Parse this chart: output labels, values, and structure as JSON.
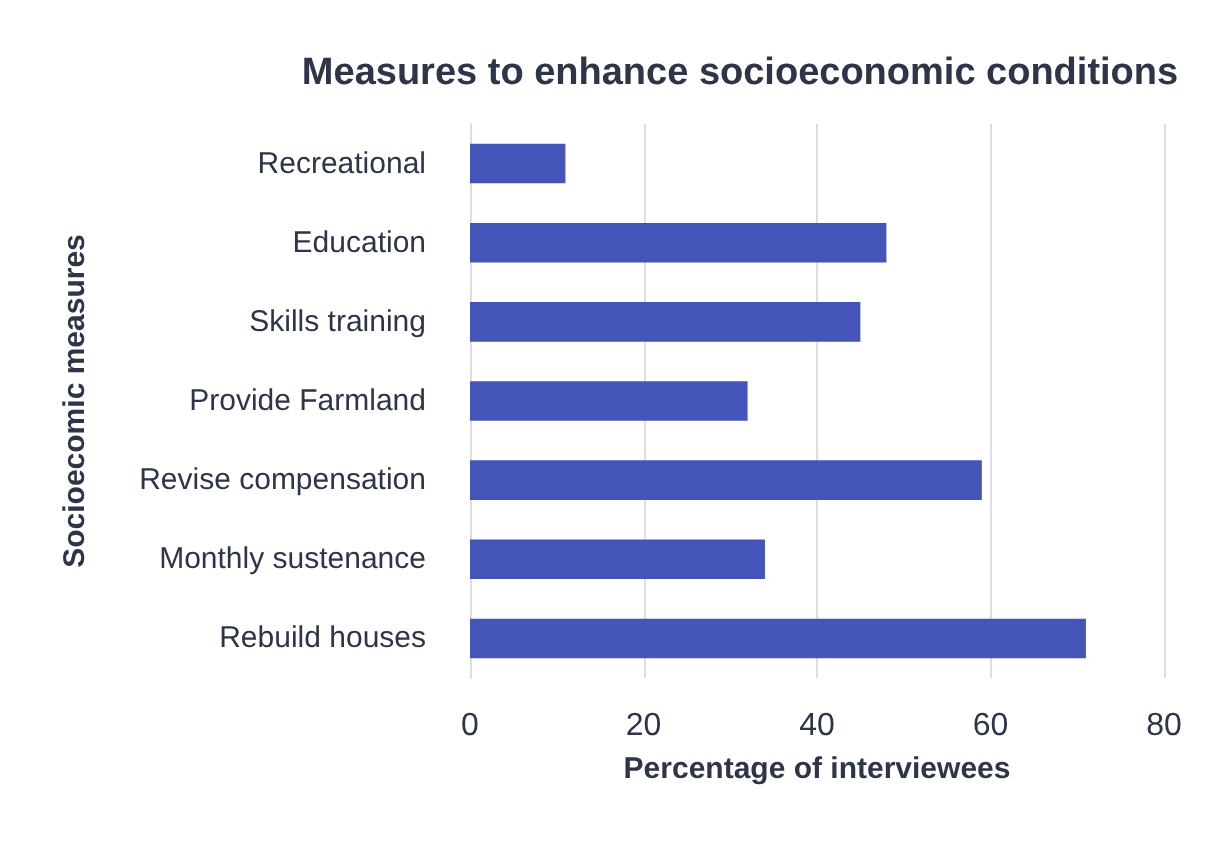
{
  "chart_data": {
    "type": "bar",
    "orientation": "horizontal",
    "title": "Measures to enhance socioeconomic conditions",
    "xlabel": "Percentage of interviewees",
    "ylabel": "Socioecomic measures",
    "categories": [
      "Recreational",
      "Education",
      "Skills training",
      "Provide Farmland",
      "Revise compensation",
      "Monthly sustenance",
      "Rebuild houses"
    ],
    "values": [
      11,
      48,
      45,
      32,
      59,
      34,
      71
    ],
    "color": "#4454b8",
    "xlim": [
      0,
      80
    ],
    "xticks": [
      0,
      20,
      40,
      60,
      80
    ],
    "grid": "x"
  }
}
